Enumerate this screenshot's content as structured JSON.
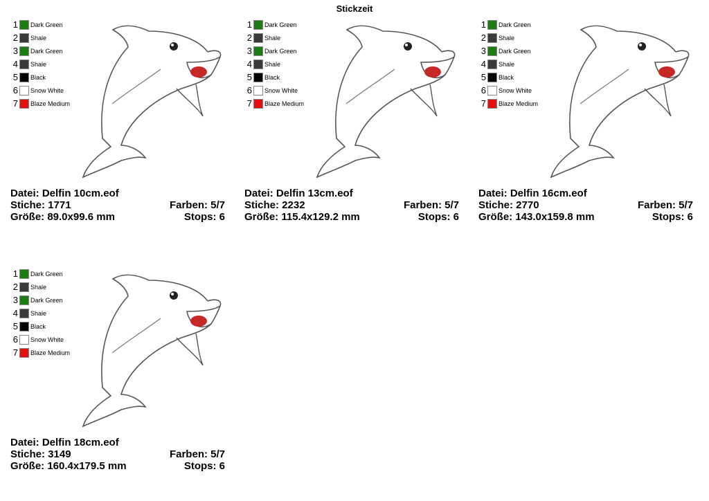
{
  "header": {
    "title": "Stickzeit"
  },
  "palette": [
    {
      "number": "1",
      "name": "Dark Green",
      "color": "#1e7a12"
    },
    {
      "number": "2",
      "name": "Shale",
      "color": "#3a3a3a"
    },
    {
      "number": "3",
      "name": "Dark Green",
      "color": "#1e7a12"
    },
    {
      "number": "4",
      "name": "Shale",
      "color": "#3a3a3a"
    },
    {
      "number": "5",
      "name": "Black",
      "color": "#050505"
    },
    {
      "number": "6",
      "name": "Snow White",
      "color": "#ffffff"
    },
    {
      "number": "7",
      "name": "Blaze Medium",
      "color": "#e41010"
    }
  ],
  "panels": [
    {
      "file": "Datei: Delfin 10cm.eof",
      "stitches": "Stiche: 1771",
      "colors": "Farben: 5/7",
      "size": "Größe: 89.0x99.6 mm",
      "stops": "Stops: 6"
    },
    {
      "file": "Datei: Delfin 13cm.eof",
      "stitches": "Stiche: 2232",
      "colors": "Farben: 5/7",
      "size": "Größe: 115.4x129.2 mm",
      "stops": "Stops: 6"
    },
    {
      "file": "Datei: Delfin 16cm.eof",
      "stitches": "Stiche: 2770",
      "colors": "Farben: 5/7",
      "size": "Größe: 143.0x159.8 mm",
      "stops": "Stops: 6"
    },
    {
      "file": "Datei: Delfin 18cm.eof",
      "stitches": "Stiche: 3149",
      "colors": "Farben: 5/7",
      "size": "Größe: 160.4x179.5 mm",
      "stops": "Stops: 6"
    }
  ]
}
